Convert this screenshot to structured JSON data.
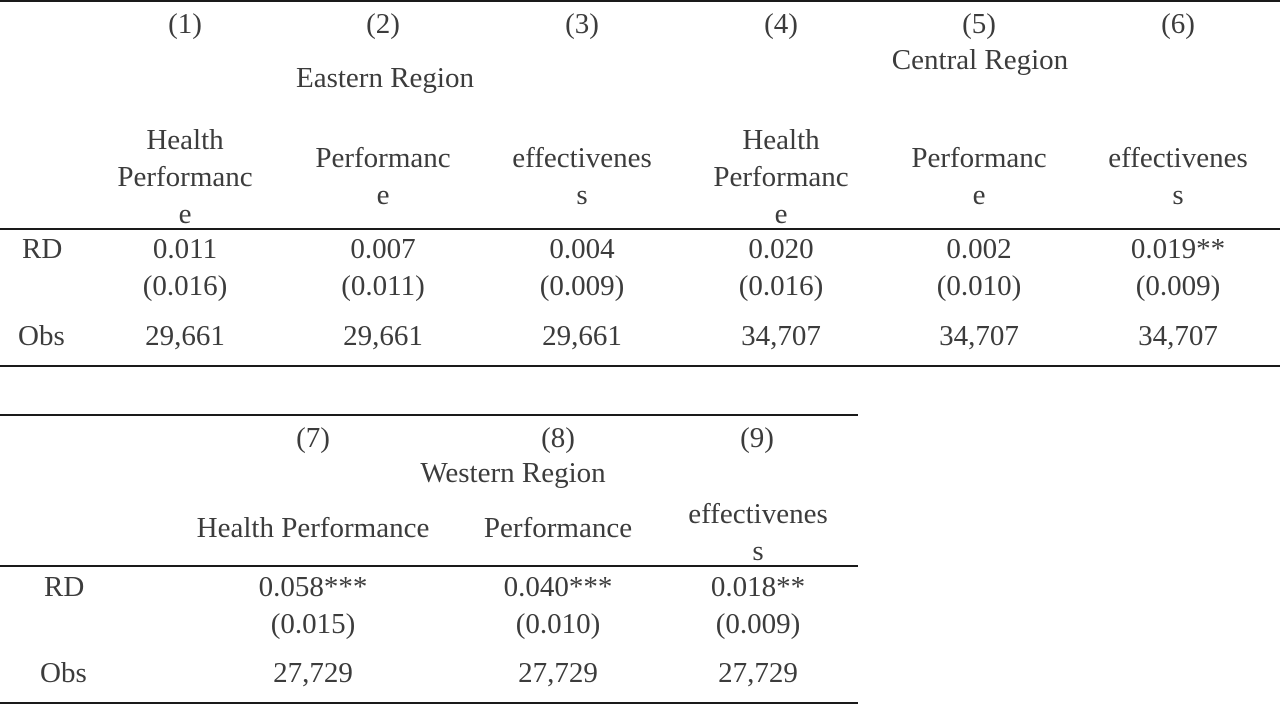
{
  "table1": {
    "col_numbers": [
      "(1)",
      "(2)",
      "(3)",
      "(4)",
      "(5)",
      "(6)"
    ],
    "group_eastern": "Eastern Region",
    "group_central": "Central Region",
    "col_headers": [
      {
        "l1": "Health",
        "l2": "Performanc",
        "l3": "e"
      },
      {
        "l1": "Performanc",
        "l2": "e"
      },
      {
        "l1": "effectivenes",
        "l2": "s"
      },
      {
        "l1": "Health",
        "l2": "Performanc",
        "l3": "e"
      },
      {
        "l1": "Performanc",
        "l2": "e"
      },
      {
        "l1": "effectivenes",
        "l2": "s"
      }
    ],
    "rows": {
      "rd_label": "RD",
      "rd_coef": [
        "0.011",
        "0.007",
        "0.004",
        "0.020",
        "0.002",
        "0.019**"
      ],
      "rd_se": [
        "(0.016)",
        "(0.011)",
        "(0.009)",
        "(0.016)",
        "(0.010)",
        "(0.009)"
      ],
      "obs_label": "Obs",
      "obs": [
        "29,661",
        "29,661",
        "29,661",
        "34,707",
        "34,707",
        "34,707"
      ]
    }
  },
  "table2": {
    "col_numbers": [
      "(7)",
      "(8)",
      "(9)"
    ],
    "group_western": "Western Region",
    "col_headers": [
      {
        "l1": "Health Performance"
      },
      {
        "l1": "Performance"
      },
      {
        "l1": "effectivenes",
        "l2": "s"
      }
    ],
    "rows": {
      "rd_label": "RD",
      "rd_coef": [
        "0.058***",
        "0.040***",
        "0.018**"
      ],
      "rd_se": [
        "(0.015)",
        "(0.010)",
        "(0.009)"
      ],
      "obs_label": "Obs",
      "obs": [
        "27,729",
        "27,729",
        "27,729"
      ]
    }
  }
}
